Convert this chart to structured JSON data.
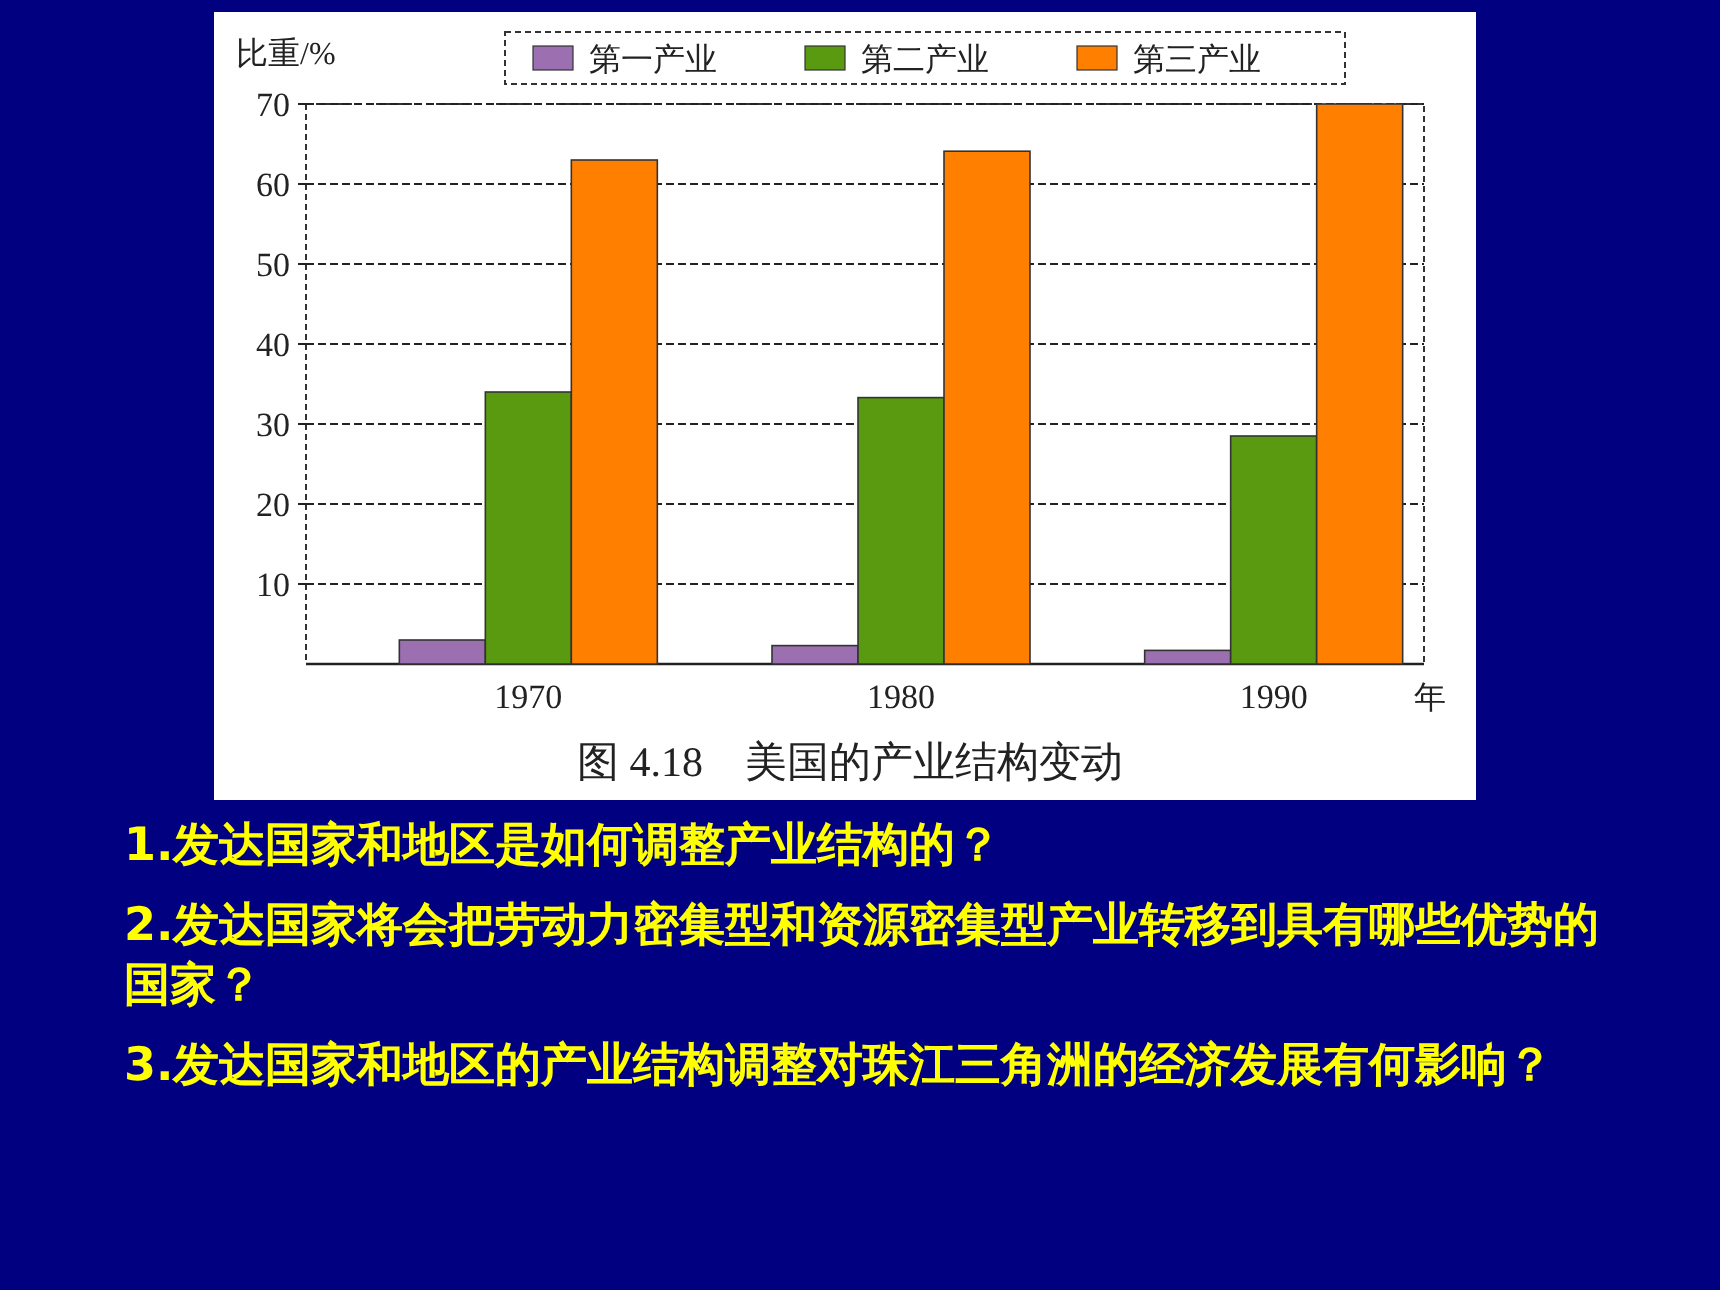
{
  "chart_data": {
    "type": "bar",
    "title": "图 4.18　美国的产业结构变动",
    "ylabel": "比重/%",
    "xlabel": "年",
    "categories": [
      "1970",
      "1980",
      "1990"
    ],
    "series": [
      {
        "name": "第一产业",
        "color": "#9b6fb0",
        "values": [
          3.0,
          2.3,
          1.7
        ]
      },
      {
        "name": "第二产业",
        "color": "#5a9a10",
        "values": [
          34,
          33.3,
          28.5
        ]
      },
      {
        "name": "第三产业",
        "color": "#ff8000",
        "values": [
          63,
          64.1,
          70
        ]
      }
    ],
    "ylim": [
      0,
      70
    ],
    "yticks": [
      10,
      20,
      30,
      40,
      50,
      60,
      70
    ],
    "grid": "y",
    "legend": "top",
    "annotations": [
      "1.发达国家和地区是如何调整产业结构的？",
      "2.发达国家将会把劳动力密集型和资源密集型产业转移到具有哪些优势的国家？",
      "3.发达国家和地区的产业结构调整对珠江三角洲的经济发展有何影响？"
    ]
  }
}
